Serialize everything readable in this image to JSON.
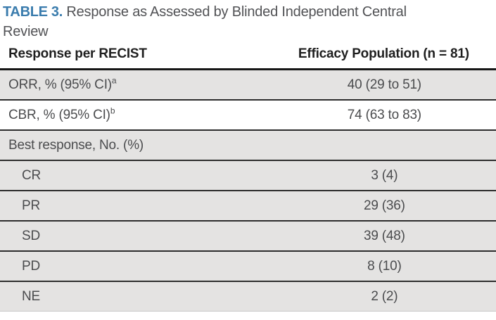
{
  "table": {
    "label": "TABLE 3.",
    "title": "Response as Assessed by Blinded Independent Central Review",
    "columns": {
      "response": "Response per RECIST",
      "efficacy": "Efficacy Population (n = 81)"
    },
    "rows": [
      {
        "label": "ORR, % (95% CI)",
        "footnote_marker": "a",
        "value": "40 (29 to 51)",
        "indent": false,
        "bg": "gray"
      },
      {
        "label": "CBR, % (95% CI)",
        "footnote_marker": "b",
        "value": "74 (63 to 83)",
        "indent": false,
        "bg": "white"
      },
      {
        "label": "Best response, No. (%)",
        "footnote_marker": "",
        "value": "",
        "indent": false,
        "bg": "gray"
      },
      {
        "label": "CR",
        "footnote_marker": "",
        "value": "3 (4)",
        "indent": true,
        "bg": "gray"
      },
      {
        "label": "PR",
        "footnote_marker": "",
        "value": "29 (36)",
        "indent": true,
        "bg": "gray"
      },
      {
        "label": "SD",
        "footnote_marker": "",
        "value": "39 (48)",
        "indent": true,
        "bg": "gray"
      },
      {
        "label": "PD",
        "footnote_marker": "",
        "value": "8 (10)",
        "indent": true,
        "bg": "gray"
      },
      {
        "label": "NE",
        "footnote_marker": "",
        "value": "2 (2)",
        "indent": true,
        "bg": "gray"
      }
    ],
    "colors": {
      "accent_blue": "#3a7cad",
      "row_gray": "#e4e3e2",
      "separator": "#2d2d2d",
      "header_rule": "#161616",
      "body_text": "#4b4c4e",
      "header_text": "#1f1f1f"
    }
  }
}
